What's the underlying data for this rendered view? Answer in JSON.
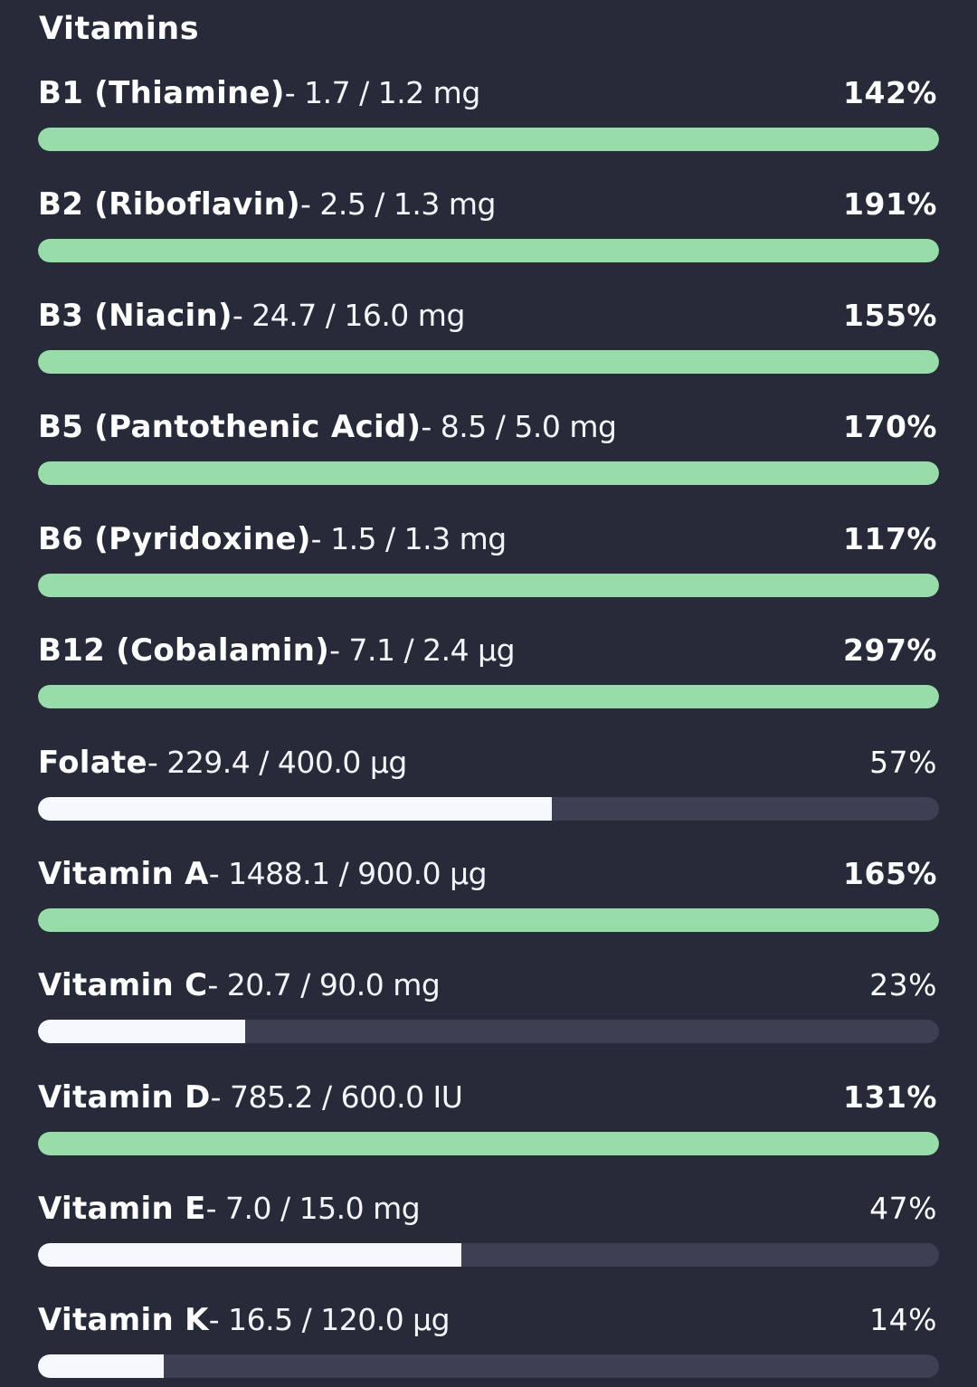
{
  "section": {
    "title": "Vitamins"
  },
  "colors": {
    "background": "#272a39",
    "met_bar": "#98dca9",
    "partial_bar": "#f6f8fd",
    "track": "#3d4052"
  },
  "nutrients": [
    {
      "name": "B1 (Thiamine)",
      "amount": "- 1.7 / 1.2 mg",
      "percent": "142%",
      "fill": 1.0,
      "met": true
    },
    {
      "name": "B2 (Riboflavin)",
      "amount": "- 2.5 / 1.3 mg",
      "percent": "191%",
      "fill": 1.0,
      "met": true
    },
    {
      "name": "B3 (Niacin)",
      "amount": "- 24.7 / 16.0 mg",
      "percent": "155%",
      "fill": 1.0,
      "met": true
    },
    {
      "name": "B5 (Pantothenic Acid)",
      "amount": "- 8.5 / 5.0 mg",
      "percent": "170%",
      "fill": 1.0,
      "met": true
    },
    {
      "name": "B6 (Pyridoxine)",
      "amount": "- 1.5 / 1.3 mg",
      "percent": "117%",
      "fill": 1.0,
      "met": true
    },
    {
      "name": "B12 (Cobalamin)",
      "amount": "- 7.1 / 2.4 µg",
      "percent": "297%",
      "fill": 1.0,
      "met": true
    },
    {
      "name": "Folate",
      "amount": "- 229.4 / 400.0 µg",
      "percent": "57%",
      "fill": 0.57,
      "met": false
    },
    {
      "name": "Vitamin A",
      "amount": "- 1488.1 / 900.0 µg",
      "percent": "165%",
      "fill": 1.0,
      "met": true
    },
    {
      "name": "Vitamin C",
      "amount": "- 20.7 / 90.0 mg",
      "percent": "23%",
      "fill": 0.23,
      "met": false
    },
    {
      "name": "Vitamin D",
      "amount": "- 785.2 / 600.0 IU",
      "percent": "131%",
      "fill": 1.0,
      "met": true
    },
    {
      "name": "Vitamin E",
      "amount": "- 7.0 / 15.0 mg",
      "percent": "47%",
      "fill": 0.47,
      "met": false
    },
    {
      "name": "Vitamin K",
      "amount": "- 16.5 / 120.0 µg",
      "percent": "14%",
      "fill": 0.14,
      "met": false
    }
  ]
}
